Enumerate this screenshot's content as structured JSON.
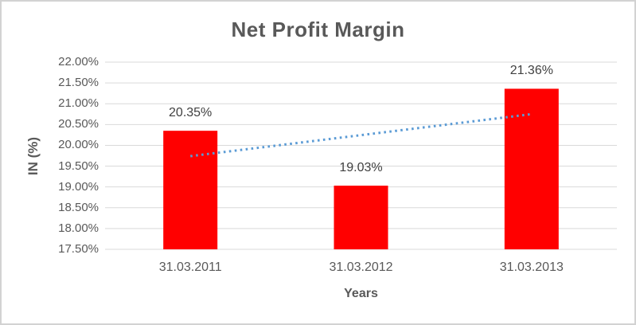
{
  "frame": {
    "background": "#ffffff",
    "border_color": "#d2d2d2"
  },
  "chart_data": {
    "type": "bar",
    "title": "Net Profit Margin",
    "xlabel": "Years",
    "ylabel": "IN (%)",
    "categories": [
      "31.03.2011",
      "31.03.2012",
      "31.03.2013"
    ],
    "series": [
      {
        "name": "Net Profit Margin",
        "values": [
          20.35,
          19.03,
          21.36
        ],
        "data_labels": [
          "20.35%",
          "19.03%",
          "21.36%"
        ],
        "color": "#ff0000"
      }
    ],
    "trendline": {
      "type": "linear",
      "style": "dotted",
      "color": "#5b9bd5",
      "fitted_values": [
        19.74,
        20.25,
        20.75
      ]
    },
    "ylim": [
      17.5,
      22.0
    ],
    "ytick_step": 0.5,
    "ytick_labels": [
      "17.50%",
      "18.00%",
      "18.50%",
      "19.00%",
      "19.50%",
      "20.00%",
      "20.50%",
      "21.00%",
      "21.50%",
      "22.00%"
    ],
    "grid": true,
    "gridline_color": "#d9d9d9",
    "legend_position": "none",
    "title_color": "#595959",
    "axis_text_color": "#595959",
    "data_label_color": "#404040"
  }
}
